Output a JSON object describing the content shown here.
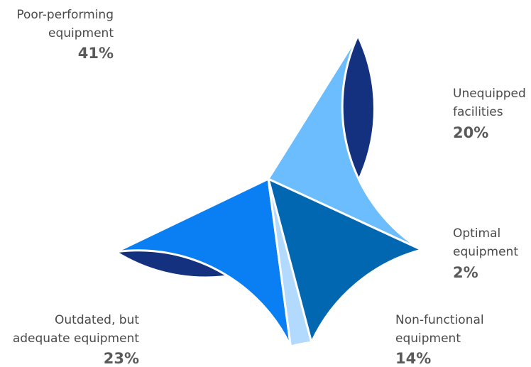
{
  "chart_data": {
    "type": "pie",
    "title": "",
    "legend": "none",
    "slices": [
      {
        "label": [
          "Poor-performing",
          "equipment"
        ],
        "value": 41,
        "value_label": "41%",
        "color": "#13317f"
      },
      {
        "label": [
          "Unequipped",
          "facilities"
        ],
        "value": 20,
        "value_label": "20%",
        "color": "#0a7ef3"
      },
      {
        "label": [
          "Optimal",
          "equipment"
        ],
        "value": 2,
        "value_label": "2%",
        "color": "#b1dafe"
      },
      {
        "label": [
          "Non-functional",
          "equipment"
        ],
        "value": 14,
        "value_label": "14%",
        "color": "#0167b1"
      },
      {
        "label": [
          "Outdated, but",
          "adequate equipment"
        ],
        "value": 23,
        "value_label": "23%",
        "color": "#6bbdfd"
      }
    ]
  }
}
